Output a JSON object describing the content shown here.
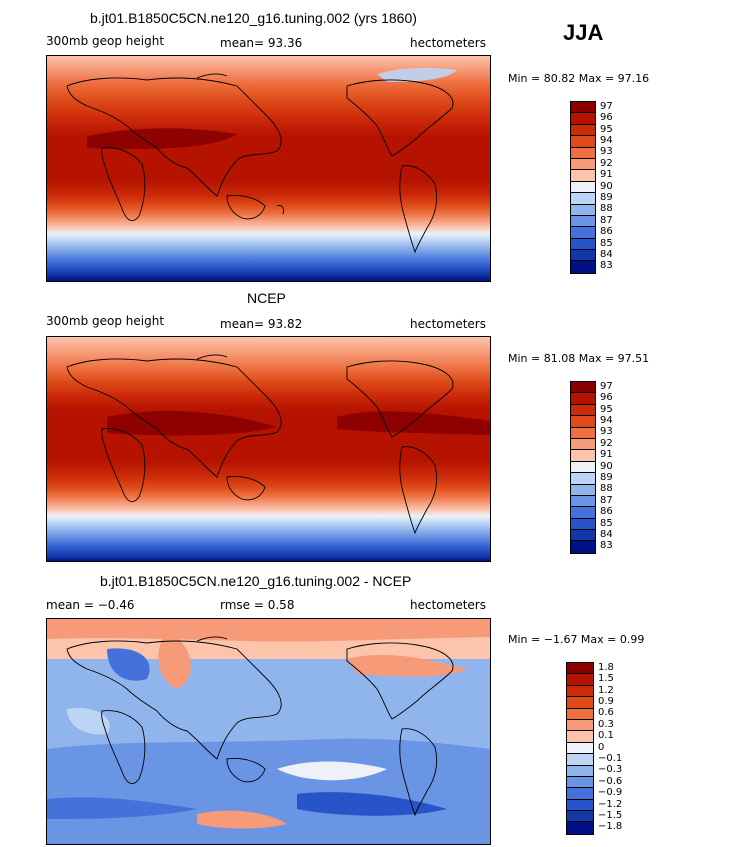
{
  "season": "JJA",
  "panels": [
    {
      "title": "b.jt01.B1850C5CN.ne120_g16.tuning.002 (yrs 1860)",
      "left_label": "300mb geop height",
      "center_label": "mean=   93.36",
      "right_label": "hectometers",
      "minmax": "Min =   80.82  Max =   97.16",
      "colorbar": [
        "97",
        "96",
        "95",
        "94",
        "93",
        "92",
        "91",
        "90",
        "89",
        "88",
        "87",
        "86",
        "85",
        "84",
        "83"
      ],
      "colors": [
        "#8a0000",
        "#b51200",
        "#cc2a0a",
        "#de4a18",
        "#ee7040",
        "#f69a78",
        "#fbc4ab",
        "#eef1f8",
        "#bcd5f5",
        "#90b5ec",
        "#6a94e4",
        "#4472da",
        "#2754c8",
        "#1238a8",
        "#000f88"
      ]
    },
    {
      "title": "NCEP",
      "left_label": "300mb geop height",
      "center_label": "mean=   93.82",
      "right_label": "hectometers",
      "minmax": "Min =   81.08  Max =   97.51",
      "colorbar": [
        "97",
        "96",
        "95",
        "94",
        "93",
        "92",
        "91",
        "90",
        "89",
        "88",
        "87",
        "86",
        "85",
        "84",
        "83"
      ],
      "colors": [
        "#8a0000",
        "#b51200",
        "#cc2a0a",
        "#de4a18",
        "#ee7040",
        "#f69a78",
        "#fbc4ab",
        "#eef1f8",
        "#bcd5f5",
        "#90b5ec",
        "#6a94e4",
        "#4472da",
        "#2754c8",
        "#1238a8",
        "#000f88"
      ]
    },
    {
      "title": "b.jt01.B1850C5CN.ne120_g16.tuning.002 - NCEP",
      "left_label": "mean =   −0.46",
      "center_label": "rmse =    0.58",
      "right_label": "hectometers",
      "minmax": "Min =  −1.67  Max =    0.99",
      "colorbar": [
        "1.8",
        "1.5",
        "1.2",
        "0.9",
        "0.6",
        "0.3",
        "0.1",
        "0",
        "−0.1",
        "−0.3",
        "−0.6",
        "−0.9",
        "−1.2",
        "−1.5",
        "−1.8"
      ],
      "colors": [
        "#8a0000",
        "#b51200",
        "#cc2a0a",
        "#de4a18",
        "#ee7040",
        "#f69a78",
        "#fbc4ab",
        "#eef1f8",
        "#bcd5f5",
        "#90b5ec",
        "#6a94e4",
        "#4472da",
        "#2754c8",
        "#1238a8",
        "#000f88"
      ]
    }
  ]
}
